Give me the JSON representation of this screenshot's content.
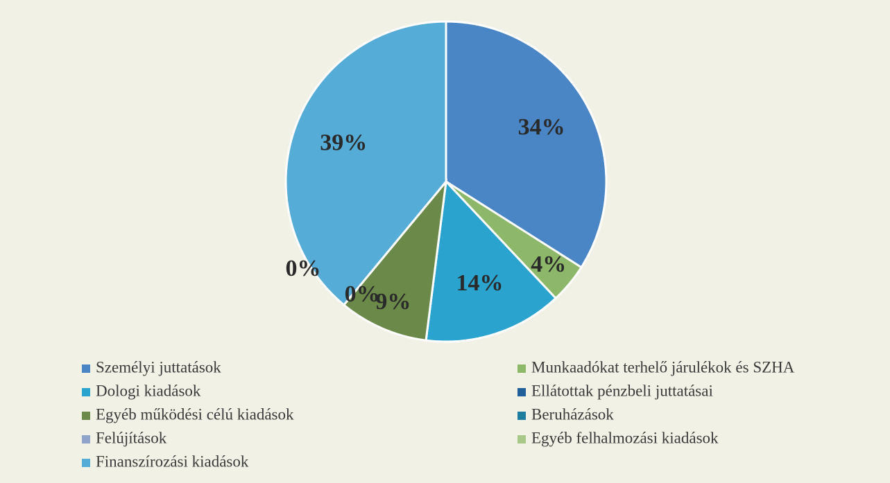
{
  "chart_data": {
    "type": "pie",
    "categories": [
      "Személyi juttatások",
      "Munkaadókat terhelő járulékok és SZHA",
      "Dologi kiadások",
      "Ellátottak pénzbeli juttatásai",
      "Egyéb működési célú kiadások",
      "Beruházások",
      "Felújítások",
      "Egyéb felhalmozási kiadások",
      "Finanszírozási kiadások"
    ],
    "values": [
      34,
      4,
      14,
      0,
      9,
      0,
      0,
      0,
      39
    ],
    "value_labels": [
      "34%",
      "4%",
      "14%",
      "0%",
      "9%",
      "0%",
      null,
      null,
      "39%"
    ],
    "colors": [
      "#4a86c5",
      "#8db86a",
      "#2aa3cf",
      "#1f5f9a",
      "#6b8a4a",
      "#1f7ea0",
      "#8ea4c8",
      "#a8c88a",
      "#55acd6"
    ]
  }
}
